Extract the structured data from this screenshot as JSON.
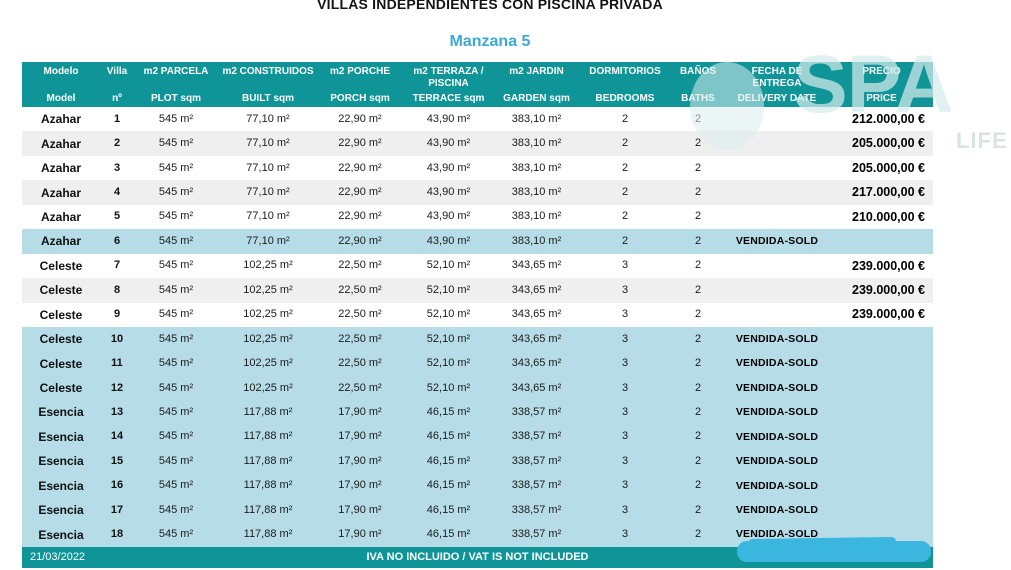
{
  "document": {
    "title": "VILLAS INDEPENDIENTES CON PISCINA PRIVADA",
    "block_title": "Manzana 5",
    "date": "21/03/2022",
    "tax_note": "IVA NO INCLUIDO / VAT IS NOT INCLUDED",
    "watermark": {
      "text": "SPA",
      "text2": "LIFE"
    }
  },
  "colors": {
    "header_teal": "#0F9598",
    "sold_row_blue": "#B5DCE7",
    "stripe_gray": "#EFEFEF",
    "subtitle_blue": "#3EA8D4",
    "scribble_cyan": "#3BB6DF"
  },
  "table": {
    "columns": [
      {
        "id": "model",
        "top": "Modelo",
        "bottom": "Model"
      },
      {
        "id": "villa",
        "top": "Villa",
        "bottom": "nº"
      },
      {
        "id": "plot",
        "top": "m2  PARCELA",
        "bottom": "PLOT sqm"
      },
      {
        "id": "built",
        "top": "m2 CONSTRUIDOS",
        "bottom": "BUILT sqm"
      },
      {
        "id": "porch",
        "top": "m2 PORCHE",
        "bottom": "PORCH sqm"
      },
      {
        "id": "terrace",
        "top": "m2 TERRAZA /\nPISCINA",
        "bottom": "TERRACE sqm"
      },
      {
        "id": "garden",
        "top": "m2 JARDIN",
        "bottom": "GARDEN sqm"
      },
      {
        "id": "bedrooms",
        "top": "DORMITORIOS",
        "bottom": "BEDROOMS"
      },
      {
        "id": "baths",
        "top": "BAÑOS",
        "bottom": "BATHS"
      },
      {
        "id": "delivery",
        "top": "FECHA DE\nENTREGA",
        "bottom": "DELIVERY DATE"
      },
      {
        "id": "price",
        "top": "PRECIO",
        "bottom": "PRICE"
      }
    ],
    "rows": [
      {
        "model": "Azahar",
        "villa": "1",
        "plot": "545 m²",
        "built": "77,10 m²",
        "porch": "22,90 m²",
        "terrace": "43,90 m²",
        "garden": "383,10 m²",
        "bedrooms": "2",
        "baths": "2",
        "delivery": "",
        "price": "212.000,00 €",
        "highlight": "none"
      },
      {
        "model": "Azahar",
        "villa": "2",
        "plot": "545 m²",
        "built": "77,10 m²",
        "porch": "22,90 m²",
        "terrace": "43,90 m²",
        "garden": "383,10 m²",
        "bedrooms": "2",
        "baths": "2",
        "delivery": "",
        "price": "205.000,00 €",
        "highlight": "stripe"
      },
      {
        "model": "Azahar",
        "villa": "3",
        "plot": "545 m²",
        "built": "77,10 m²",
        "porch": "22,90 m²",
        "terrace": "43,90 m²",
        "garden": "383,10 m²",
        "bedrooms": "2",
        "baths": "2",
        "delivery": "",
        "price": "205.000,00 €",
        "highlight": "none"
      },
      {
        "model": "Azahar",
        "villa": "4",
        "plot": "545 m²",
        "built": "77,10 m²",
        "porch": "22,90 m²",
        "terrace": "43,90 m²",
        "garden": "383,10 m²",
        "bedrooms": "2",
        "baths": "2",
        "delivery": "",
        "price": "217.000,00 €",
        "highlight": "stripe"
      },
      {
        "model": "Azahar",
        "villa": "5",
        "plot": "545 m²",
        "built": "77,10 m²",
        "porch": "22,90 m²",
        "terrace": "43,90 m²",
        "garden": "383,10 m²",
        "bedrooms": "2",
        "baths": "2",
        "delivery": "",
        "price": "210.000,00 €",
        "highlight": "none"
      },
      {
        "model": "Azahar",
        "villa": "6",
        "plot": "545 m²",
        "built": "77,10 m²",
        "porch": "22,90 m²",
        "terrace": "43,90 m²",
        "garden": "383,10 m²",
        "bedrooms": "2",
        "baths": "2",
        "delivery": "VENDIDA-SOLD",
        "price": "",
        "highlight": "sold"
      },
      {
        "model": "Celeste",
        "villa": "7",
        "plot": "545 m²",
        "built": "102,25 m²",
        "porch": "22,50 m²",
        "terrace": "52,10 m²",
        "garden": "343,65 m²",
        "bedrooms": "3",
        "baths": "2",
        "delivery": "",
        "price": "239.000,00 €",
        "highlight": "none"
      },
      {
        "model": "Celeste",
        "villa": "8",
        "plot": "545 m²",
        "built": "102,25 m²",
        "porch": "22,50 m²",
        "terrace": "52,10 m²",
        "garden": "343,65 m²",
        "bedrooms": "3",
        "baths": "2",
        "delivery": "",
        "price": "239.000,00 €",
        "highlight": "stripe"
      },
      {
        "model": "Celeste",
        "villa": "9",
        "plot": "545 m²",
        "built": "102,25 m²",
        "porch": "22,50 m²",
        "terrace": "52,10 m²",
        "garden": "343,65 m²",
        "bedrooms": "3",
        "baths": "2",
        "delivery": "",
        "price": "239.000,00 €",
        "highlight": "none"
      },
      {
        "model": "Celeste",
        "villa": "10",
        "plot": "545 m²",
        "built": "102,25 m²",
        "porch": "22,50 m²",
        "terrace": "52,10 m²",
        "garden": "343,65 m²",
        "bedrooms": "3",
        "baths": "2",
        "delivery": "VENDIDA-SOLD",
        "price": "",
        "highlight": "sold"
      },
      {
        "model": "Celeste",
        "villa": "11",
        "plot": "545 m²",
        "built": "102,25 m²",
        "porch": "22,50 m²",
        "terrace": "52,10 m²",
        "garden": "343,65 m²",
        "bedrooms": "3",
        "baths": "2",
        "delivery": "VENDIDA-SOLD",
        "price": "",
        "highlight": "sold"
      },
      {
        "model": "Celeste",
        "villa": "12",
        "plot": "545 m²",
        "built": "102,25 m²",
        "porch": "22,50 m²",
        "terrace": "52,10 m²",
        "garden": "343,65 m²",
        "bedrooms": "3",
        "baths": "2",
        "delivery": "VENDIDA-SOLD",
        "price": "",
        "highlight": "sold"
      },
      {
        "model": "Esencia",
        "villa": "13",
        "plot": "545 m²",
        "built": "117,88 m²",
        "porch": "17,90 m²",
        "terrace": "46,15 m²",
        "garden": "338,57 m²",
        "bedrooms": "3",
        "baths": "2",
        "delivery": "VENDIDA-SOLD",
        "price": "",
        "highlight": "sold"
      },
      {
        "model": "Esencia",
        "villa": "14",
        "plot": "545 m²",
        "built": "117,88 m²",
        "porch": "17,90 m²",
        "terrace": "46,15 m²",
        "garden": "338,57 m²",
        "bedrooms": "3",
        "baths": "2",
        "delivery": "VENDIDA-SOLD",
        "price": "",
        "highlight": "sold"
      },
      {
        "model": "Esencia",
        "villa": "15",
        "plot": "545 m²",
        "built": "117,88 m²",
        "porch": "17,90 m²",
        "terrace": "46,15 m²",
        "garden": "338,57 m²",
        "bedrooms": "3",
        "baths": "2",
        "delivery": "VENDIDA-SOLD",
        "price": "",
        "highlight": "sold"
      },
      {
        "model": "Esencia",
        "villa": "16",
        "plot": "545 m²",
        "built": "117,88 m²",
        "porch": "17,90 m²",
        "terrace": "46,15 m²",
        "garden": "338,57 m²",
        "bedrooms": "3",
        "baths": "2",
        "delivery": "VENDIDA-SOLD",
        "price": "",
        "highlight": "sold"
      },
      {
        "model": "Esencia",
        "villa": "17",
        "plot": "545 m²",
        "built": "117,88 m²",
        "porch": "17,90 m²",
        "terrace": "46,15 m²",
        "garden": "338,57 m²",
        "bedrooms": "3",
        "baths": "2",
        "delivery": "VENDIDA-SOLD",
        "price": "",
        "highlight": "sold"
      },
      {
        "model": "Esencia",
        "villa": "18",
        "plot": "545 m²",
        "built": "117,88 m²",
        "porch": "17,90 m²",
        "terrace": "46,15 m²",
        "garden": "338,57 m²",
        "bedrooms": "3",
        "baths": "2",
        "delivery": "VENDIDA-SOLD",
        "price": "",
        "highlight": "sold"
      }
    ]
  }
}
